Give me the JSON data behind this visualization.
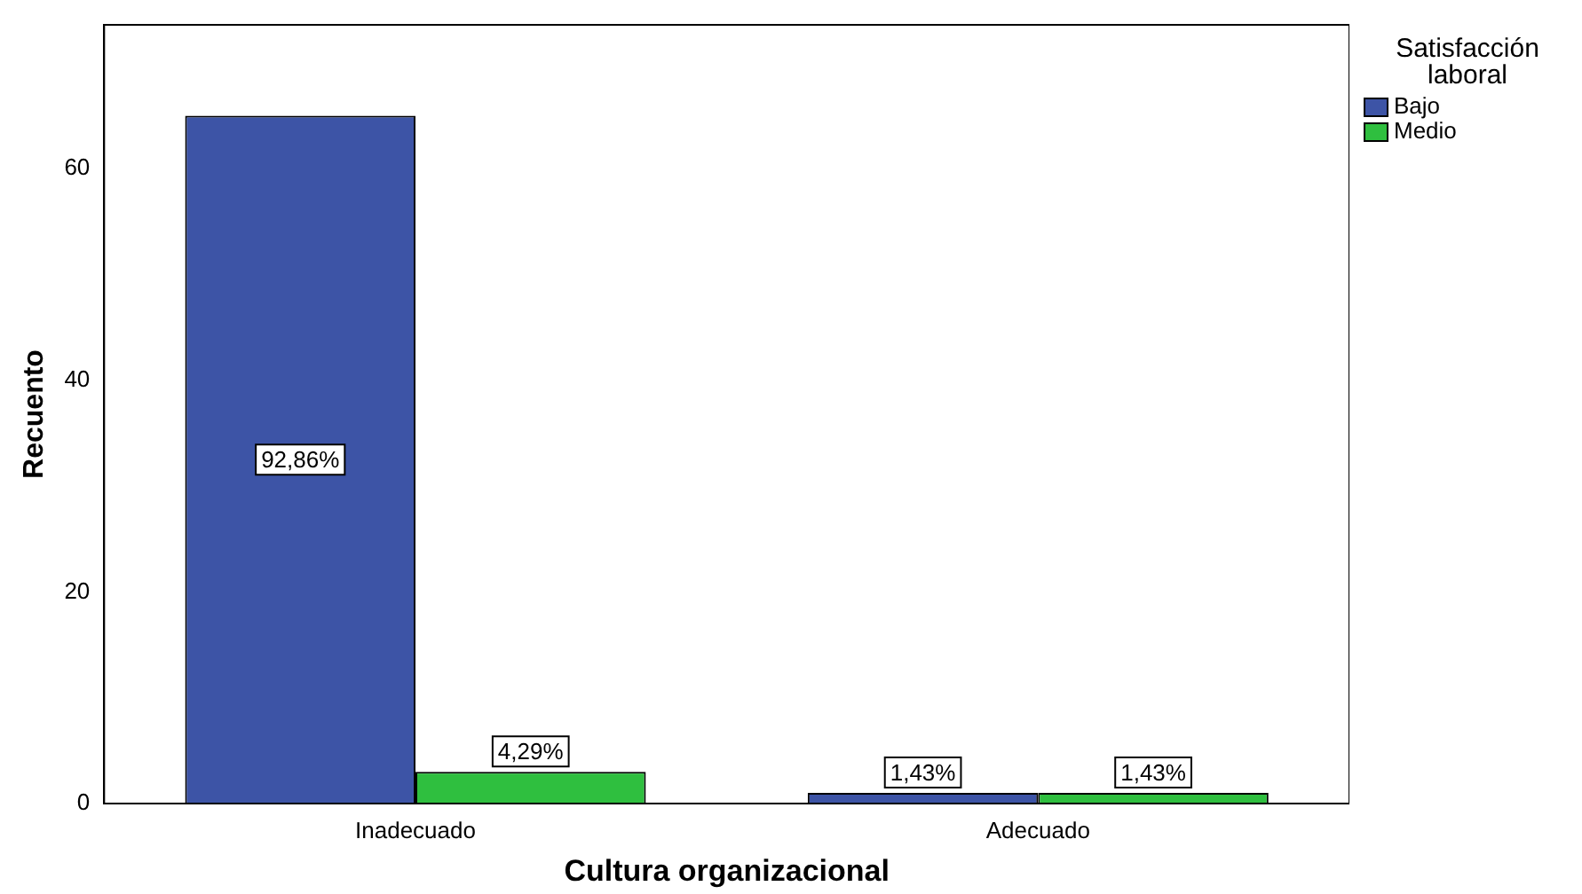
{
  "chart_data": {
    "type": "bar",
    "xlabel": "Cultura organizacional",
    "ylabel": "Recuento",
    "legend_title": "Satisfacción laboral",
    "categories": [
      "Inadecuado",
      "Adecuado"
    ],
    "series": [
      {
        "name": "Bajo",
        "color": "#3d54a6",
        "values": [
          65,
          1
        ]
      },
      {
        "name": "Medio",
        "color": "#2fbf3f",
        "values": [
          3,
          1
        ]
      }
    ],
    "annotations": [
      "92,86%",
      "4,29%",
      "1,43%",
      "1,43%"
    ],
    "ylim": [
      0,
      73.6
    ],
    "yticks": [
      0,
      20,
      40,
      60
    ],
    "grid": false,
    "legend": "top right"
  }
}
